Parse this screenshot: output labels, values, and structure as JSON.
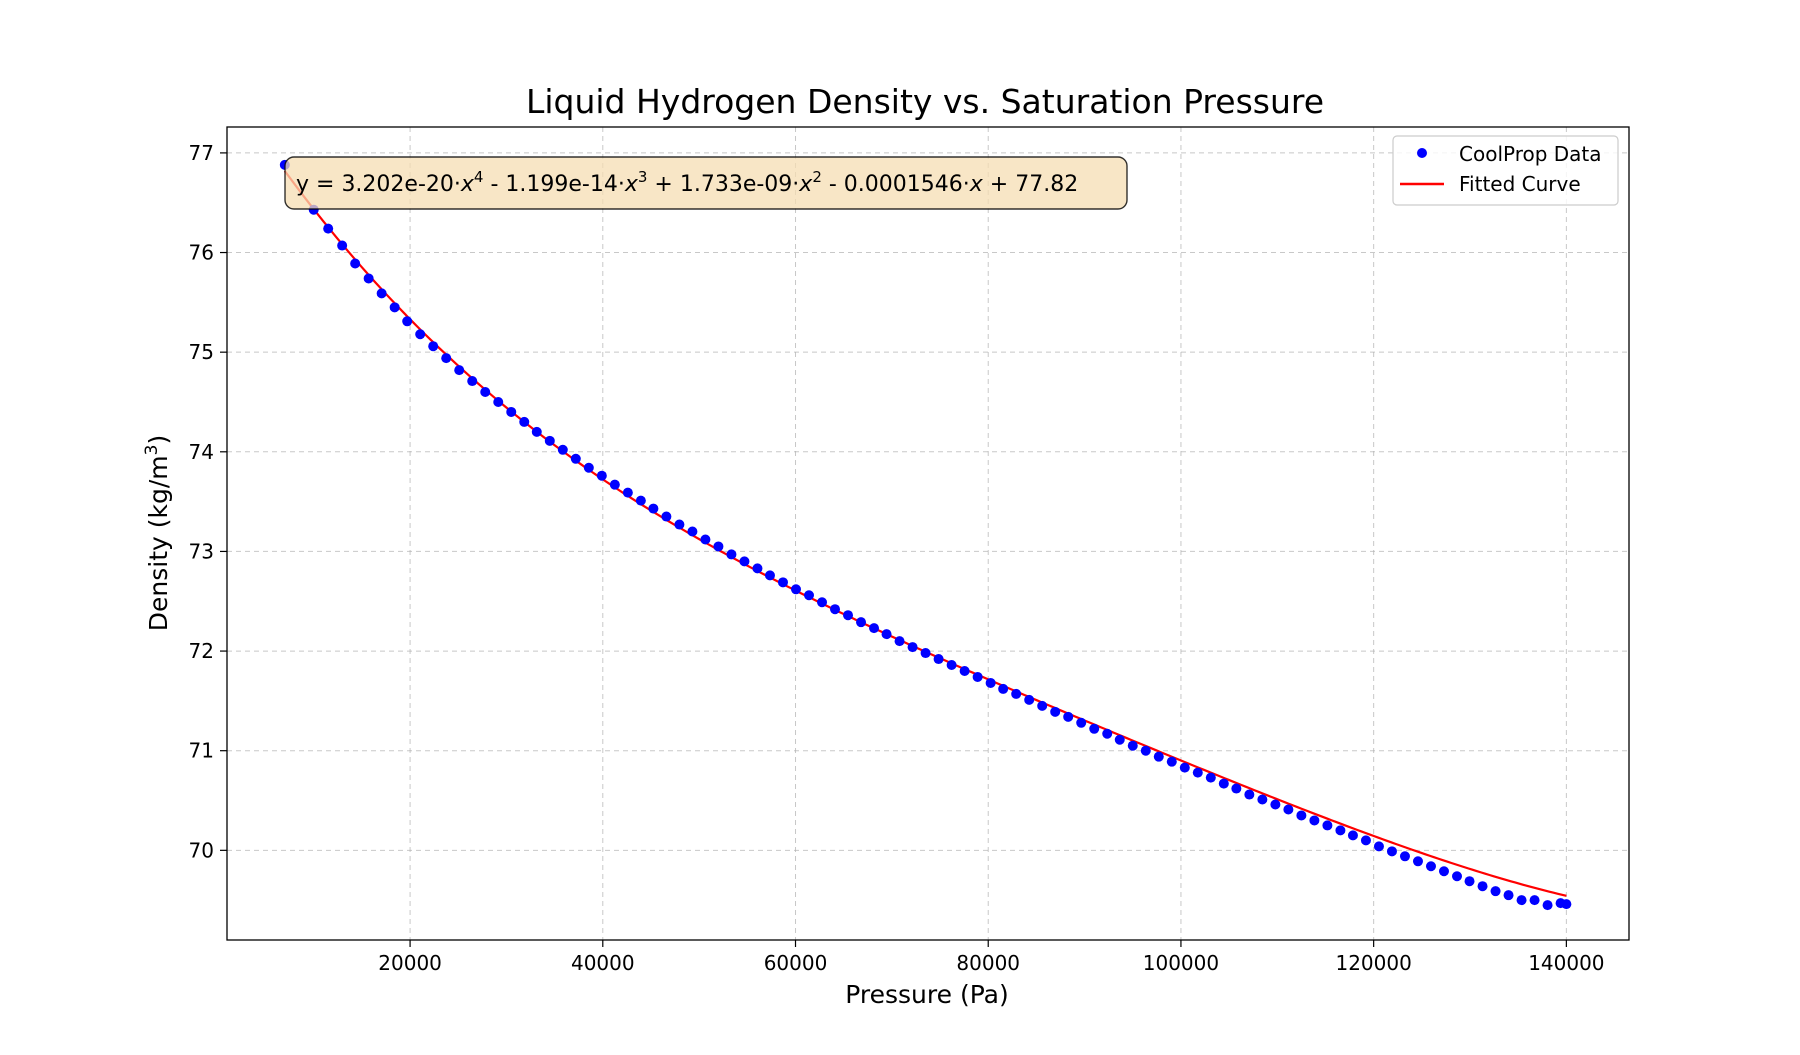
{
  "chart_data": {
    "type": "scatter",
    "title": "Liquid Hydrogen Density vs. Saturation Pressure",
    "xlabel": "Pressure (Pa)",
    "ylabel_main": "Density (kg/m",
    "ylabel_sup": "3",
    "ylabel_close": ")",
    "xlim": [
      1000,
      146500
    ],
    "ylim": [
      69.1,
      77.26
    ],
    "xticks": [
      20000,
      40000,
      60000,
      80000,
      100000,
      120000,
      140000
    ],
    "yticks": [
      70,
      71,
      72,
      73,
      74,
      75,
      76,
      77
    ],
    "grid": true,
    "legend_position": "top-right",
    "legend": {
      "points_label": "CoolProp Data",
      "curve_label": "Fitted Curve"
    },
    "equation": {
      "p1": "y = 3.202e-20·",
      "v1": "x",
      "s1": "4",
      "p2": " - 1.199e-14·",
      "v2": "x",
      "s2": "3",
      "p3": " + 1.733e-09·",
      "v3": "x",
      "s3": "2",
      "p4": " - 0.0001546·",
      "v4": "x",
      "p5": " + 77.82"
    },
    "fit_coefficients": [
      3.202e-20,
      -1.199e-14,
      1.733e-09,
      -0.0001546,
      77.82
    ],
    "colors": {
      "points": "#0000ff",
      "curve": "#ff0000",
      "equation_box": "#f5deb3",
      "grid": "#b0b0b0"
    },
    "series": [
      {
        "name": "CoolProp Data",
        "x": [
          7000,
          10000,
          11500,
          12950,
          14300,
          15700,
          17050,
          18400,
          19700,
          21050,
          22400,
          23750,
          25100,
          26450,
          27800,
          29150,
          30500,
          31850,
          33150,
          34500,
          35850,
          37200,
          38550,
          39900,
          41250,
          42600,
          43950,
          45250,
          46600,
          47950,
          49300,
          50650,
          52000,
          53350,
          54700,
          56050,
          57350,
          58700,
          60050,
          61400,
          62750,
          64100,
          65450,
          66800,
          68150,
          69450,
          70800,
          72150,
          73500,
          74850,
          76200,
          77550,
          78900,
          80250,
          81550,
          82900,
          84250,
          85600,
          86950,
          88300,
          89650,
          91000,
          92350,
          93650,
          95000,
          96350,
          97700,
          99050,
          100400,
          101750,
          103100,
          104450,
          105750,
          107100,
          108450,
          109800,
          111150,
          112500,
          113850,
          115200,
          116550,
          117850,
          119200,
          120550,
          121900,
          123250,
          124600,
          125950,
          127300,
          128650,
          129950,
          131300,
          132650,
          134000,
          135350,
          136700,
          138050,
          139400,
          140000
        ],
        "y": [
          76.88,
          76.43,
          76.24,
          76.07,
          75.89,
          75.74,
          75.59,
          75.45,
          75.31,
          75.18,
          75.06,
          74.94,
          74.82,
          74.71,
          74.6,
          74.5,
          74.4,
          74.3,
          74.2,
          74.11,
          74.02,
          73.93,
          73.84,
          73.76,
          73.67,
          73.59,
          73.51,
          73.43,
          73.35,
          73.27,
          73.2,
          73.12,
          73.05,
          72.97,
          72.9,
          72.83,
          72.76,
          72.69,
          72.62,
          72.56,
          72.49,
          72.42,
          72.36,
          72.29,
          72.23,
          72.17,
          72.1,
          72.04,
          71.98,
          71.92,
          71.86,
          71.8,
          71.74,
          71.68,
          71.62,
          71.57,
          71.51,
          71.45,
          71.39,
          71.34,
          71.28,
          71.22,
          71.17,
          71.11,
          71.05,
          71.0,
          70.94,
          70.89,
          70.83,
          70.78,
          70.73,
          70.67,
          70.62,
          70.56,
          70.51,
          70.46,
          70.41,
          70.35,
          70.3,
          70.25,
          70.2,
          70.15,
          70.1,
          70.04,
          69.99,
          69.94,
          69.89,
          69.84,
          69.79,
          69.74,
          69.69,
          69.64,
          69.59,
          69.55,
          69.5,
          69.5,
          69.45,
          69.47,
          69.46
        ]
      }
    ]
  }
}
